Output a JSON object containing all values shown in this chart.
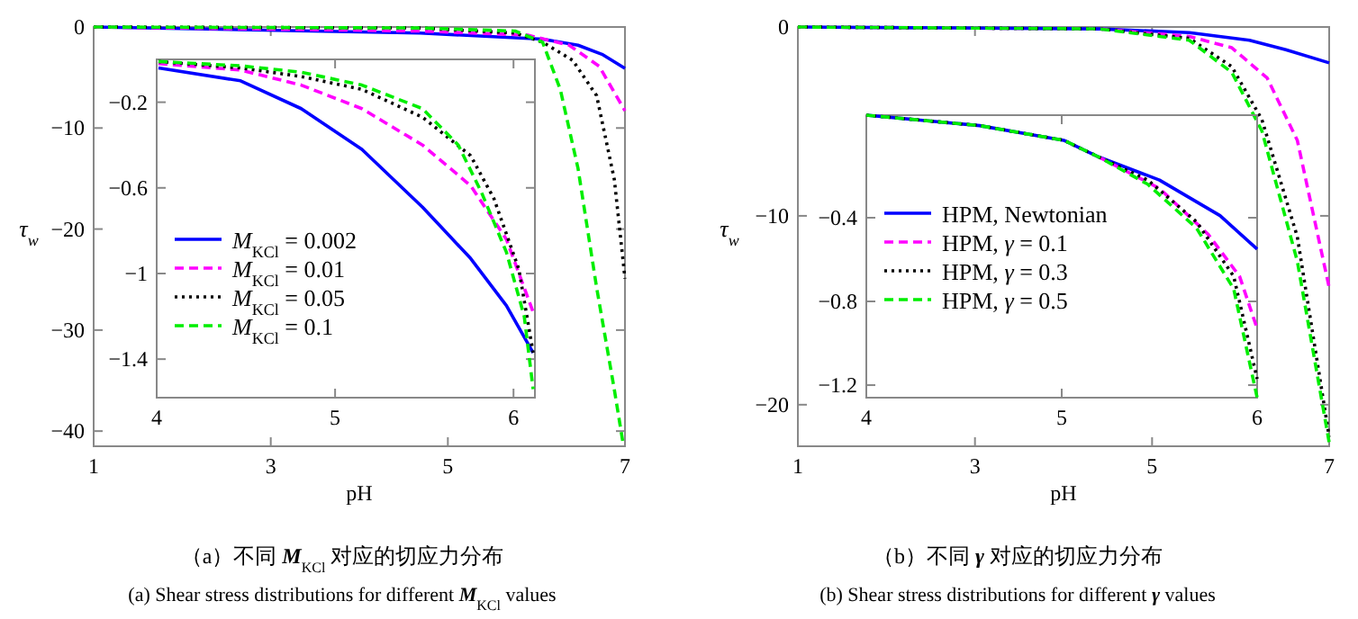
{
  "chart_data": [
    {
      "type": "line",
      "ylabel": "τ$_{w}$",
      "xlabel": "pH",
      "xlim": [
        1,
        7
      ],
      "ylim": [
        -41.5,
        0
      ],
      "xticks": [
        1,
        3,
        5,
        7
      ],
      "yticks": [
        0,
        -10,
        -20,
        -30,
        -40
      ],
      "legend": false,
      "annotations": [
        "（a）不同 **M**$_{KCl}$ 对应的切应力分布",
        "(a) Shear stress distributions for different **M**$_{KCl}$ values"
      ],
      "series": [
        {
          "color": "#0000ff",
          "line_style": "solid",
          "x": [
            1,
            4.69,
            6.07,
            6.47,
            6.74,
            7
          ],
          "values": [
            0,
            -0.6,
            -1.2,
            -1.8,
            -2.7,
            -4.1
          ]
        },
        {
          "color": "#ff00ff",
          "line_style": "dashed",
          "x": [
            1,
            4.69,
            5.9,
            6.37,
            6.71,
            7
          ],
          "values": [
            0,
            -0.4,
            -0.8,
            -1.8,
            -3.9,
            -8.3
          ]
        },
        {
          "color": "#000000",
          "line_style": "dotted",
          "x": [
            1,
            4.69,
            5.76,
            6.07,
            6.41,
            6.68,
            6.88,
            7
          ],
          "values": [
            0,
            -0.1,
            -0.6,
            -1.5,
            -3.3,
            -6.8,
            -15.1,
            -24.9
          ]
        },
        {
          "color": "#00ee00",
          "line_style": "dashed",
          "x": [
            1,
            4.69,
            5.76,
            6.07,
            6.27,
            6.47,
            6.68,
            6.88,
            6.98
          ],
          "values": [
            0,
            -0.1,
            -0.4,
            -1.5,
            -6.2,
            -14,
            -25.8,
            -35.9,
            -41.3
          ]
        }
      ]
    },
    {
      "type": "line",
      "xlim": [
        4,
        6.12
      ],
      "ylim": [
        -1.58,
        0
      ],
      "xticks": [
        4,
        5,
        6
      ],
      "yticks": [
        -0.2,
        -0.6,
        -1,
        -1.4
      ],
      "legend": "bottom left",
      "series": [
        {
          "name": "*M*$_{KCl}$ = 0.002",
          "color": "#0000ff",
          "line_style": "solid",
          "x": [
            4.01,
            4.47,
            4.81,
            5.15,
            5.49,
            5.76,
            5.96,
            6.11
          ],
          "values": [
            -0.04,
            -0.1,
            -0.23,
            -0.42,
            -0.69,
            -0.93,
            -1.15,
            -1.37
          ]
        },
        {
          "name": "*M*$_{KCl}$ = 0.01",
          "color": "#ff00ff",
          "line_style": "dashed",
          "x": [
            4.01,
            4.47,
            4.81,
            5.15,
            5.49,
            5.76,
            5.96,
            6.11
          ],
          "values": [
            -0.02,
            -0.05,
            -0.12,
            -0.23,
            -0.4,
            -0.59,
            -0.84,
            -1.18
          ]
        },
        {
          "name": "*M*$_{KCl}$ = 0.05",
          "color": "#000000",
          "line_style": "dotted",
          "x": [
            4.01,
            4.47,
            4.81,
            5.15,
            5.49,
            5.76,
            5.89,
            6.03,
            6.11
          ],
          "values": [
            -0.01,
            -0.04,
            -0.08,
            -0.14,
            -0.27,
            -0.45,
            -0.65,
            -0.98,
            -1.37
          ]
        },
        {
          "name": "*M*$_{KCl}$ = 0.1",
          "color": "#00ee00",
          "line_style": "dashed",
          "x": [
            4.01,
            4.47,
            4.81,
            5.15,
            5.49,
            5.69,
            5.82,
            5.96,
            6.06,
            6.11
          ],
          "values": [
            -0.01,
            -0.03,
            -0.06,
            -0.12,
            -0.23,
            -0.4,
            -0.62,
            -0.9,
            -1.2,
            -1.54
          ]
        }
      ]
    },
    {
      "type": "line",
      "ylabel": "τ$_{w}$",
      "xlabel": "pH",
      "xlim": [
        1,
        7
      ],
      "ylim": [
        -22.2,
        0
      ],
      "xticks": [
        1,
        3,
        5,
        7
      ],
      "yticks": [
        0,
        -10,
        -20
      ],
      "legend": false,
      "annotations": [
        "（b）不同 **γ** 对应的切应力分布",
        "(b) Shear stress distributions for different **γ** values"
      ],
      "series": [
        {
          "color": "#0000ff",
          "line_style": "solid",
          "x": [
            1,
            4.41,
            5.42,
            6.1,
            6.51,
            7
          ],
          "values": [
            0,
            -0.1,
            -0.3,
            -0.7,
            -1.2,
            -1.9
          ]
        },
        {
          "color": "#ff00ff",
          "line_style": "dashed",
          "x": [
            1,
            4.41,
            5.42,
            5.9,
            6.3,
            6.64,
            7
          ],
          "values": [
            0,
            -0.1,
            -0.5,
            -1.1,
            -2.7,
            -6,
            -13.8
          ]
        },
        {
          "color": "#000000",
          "line_style": "dotted",
          "x": [
            1,
            4.41,
            5.42,
            5.9,
            6.24,
            6.64,
            7
          ],
          "values": [
            0,
            -0.1,
            -0.6,
            -2.1,
            -4.9,
            -11.1,
            -21.7
          ]
        },
        {
          "color": "#00ee00",
          "line_style": "dashed",
          "x": [
            1,
            4.41,
            5.42,
            5.9,
            6.24,
            6.64,
            7
          ],
          "values": [
            0,
            -0.1,
            -0.7,
            -2.4,
            -5.5,
            -12.4,
            -22
          ]
        }
      ]
    },
    {
      "type": "line",
      "xlim": [
        4,
        6
      ],
      "ylim": [
        -1.26,
        0.09
      ],
      "xticks": [
        4,
        5,
        6
      ],
      "yticks": [
        -0.4,
        -0.8,
        -1.2
      ],
      "legend": "center left",
      "series": [
        {
          "name": "HPM, Newtonian",
          "color": "#0000ff",
          "line_style": "solid",
          "x": [
            4,
            4.58,
            5.01,
            5.19,
            5.5,
            5.81,
            6
          ],
          "values": [
            0.09,
            0.04,
            -0.03,
            -0.11,
            -0.22,
            -0.39,
            -0.55
          ]
        },
        {
          "name": "HPM, *γ* = 0.1",
          "color": "#ff00ff",
          "line_style": "dashed",
          "x": [
            5.19,
            5.5,
            5.75,
            5.91,
            6
          ],
          "values": [
            -0.11,
            -0.26,
            -0.48,
            -0.68,
            -0.93
          ]
        },
        {
          "name": "HPM, *γ* = 0.3",
          "color": "#000000",
          "line_style": "dotted",
          "x": [
            4,
            4.58,
            5.01,
            5.19,
            5.44,
            5.69,
            5.88,
            6
          ],
          "values": [
            0.09,
            0.04,
            -0.03,
            -0.11,
            -0.22,
            -0.42,
            -0.68,
            -1.17
          ]
        },
        {
          "name": "HPM, *γ* = 0.5",
          "color": "#00ee00",
          "line_style": "dashed",
          "x": [
            4,
            4.58,
            5.01,
            5.19,
            5.44,
            5.69,
            5.88,
            6
          ],
          "values": [
            0.09,
            0.04,
            -0.03,
            -0.11,
            -0.24,
            -0.45,
            -0.74,
            -1.26
          ]
        }
      ]
    }
  ]
}
